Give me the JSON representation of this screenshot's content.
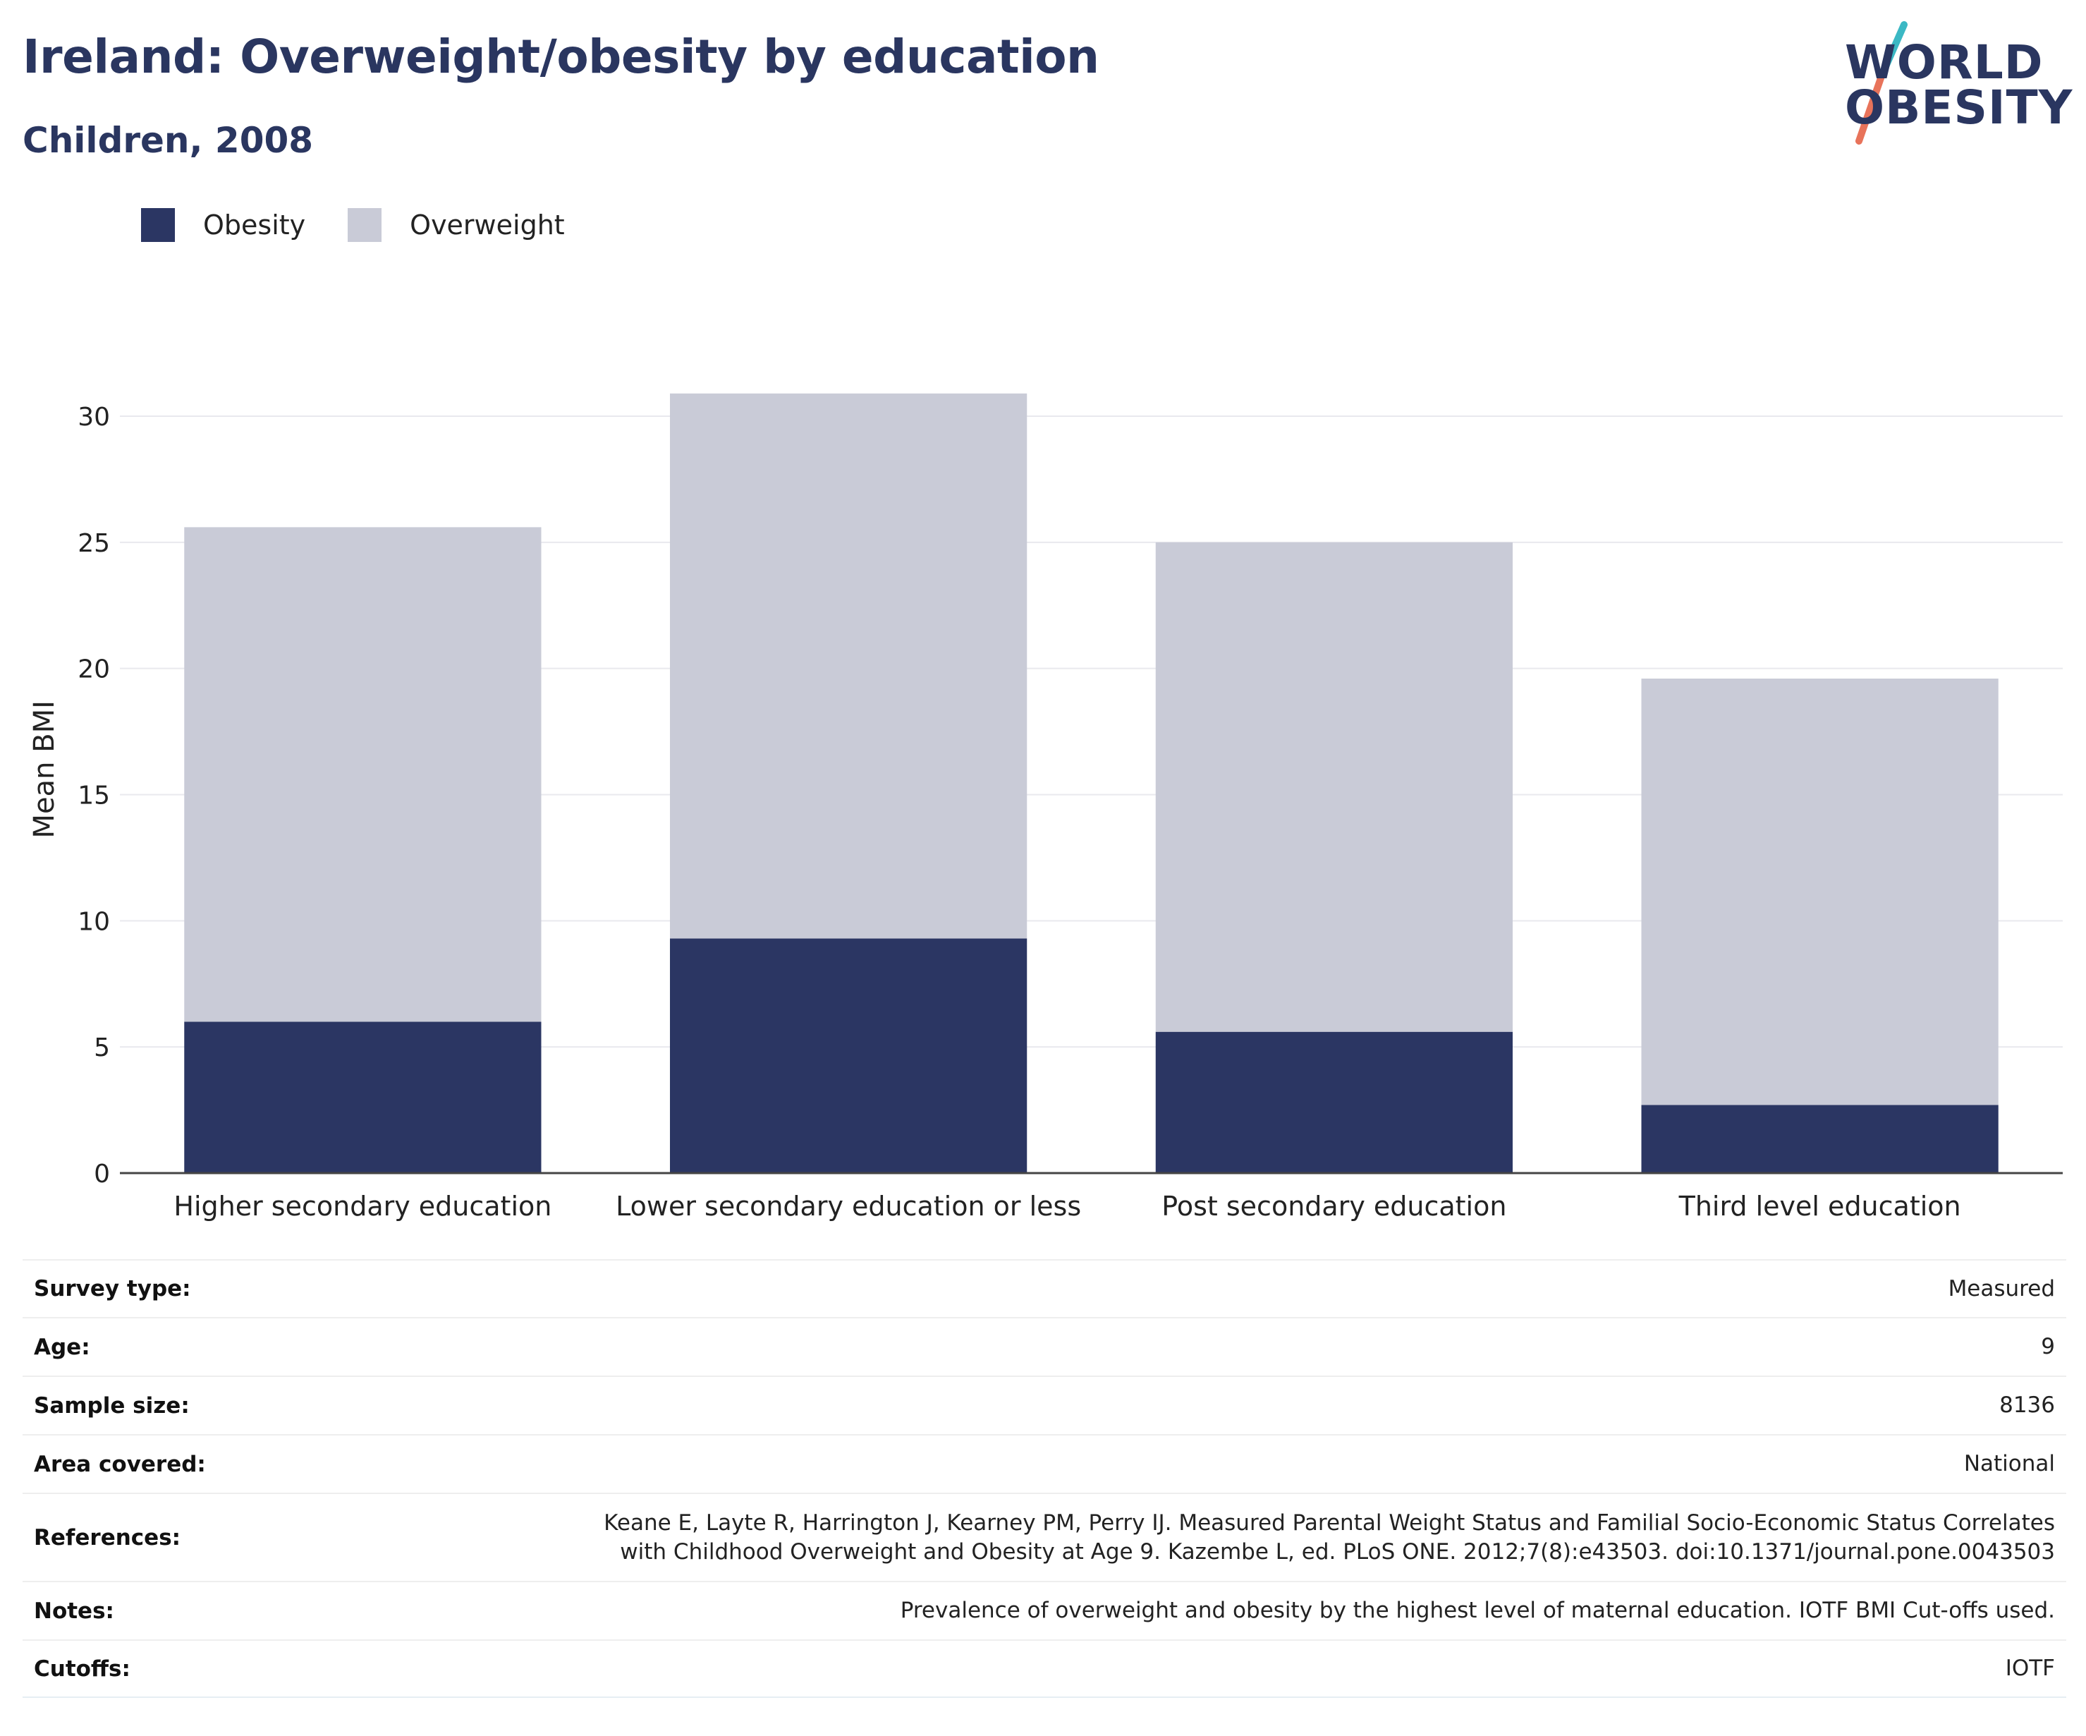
{
  "header": {
    "title": "Ireland: Overweight/obesity by education",
    "subtitle": "Children, 2008"
  },
  "logo": {
    "text_line1": "WORLD",
    "text_line2": "OBESITY",
    "colors": {
      "text": "#2a3660",
      "slash_top": "#3bb8c4",
      "slash_bottom": "#e8735a"
    }
  },
  "legend": [
    {
      "label": "Obesity",
      "color": "#2b3663"
    },
    {
      "label": "Overweight",
      "color": "#c9cbd7"
    }
  ],
  "chart_data": {
    "type": "bar",
    "stacked": true,
    "categories": [
      "Higher secondary education",
      "Lower secondary education or less",
      "Post secondary education",
      "Third level education"
    ],
    "series": [
      {
        "name": "Obesity",
        "color": "#2b3663",
        "values": [
          6.0,
          9.3,
          5.6,
          2.7
        ]
      },
      {
        "name": "Overweight",
        "color": "#c9cbd7",
        "values": [
          19.6,
          21.6,
          19.4,
          16.9
        ]
      }
    ],
    "ylabel": "Mean BMI",
    "ylim": [
      0,
      32
    ],
    "yticks": [
      0,
      5,
      10,
      15,
      20,
      25,
      30
    ],
    "grid": true,
    "legend_position": "top-left"
  },
  "info": [
    {
      "label": "Survey type:",
      "value": "Measured"
    },
    {
      "label": "Age:",
      "value": "9"
    },
    {
      "label": "Sample size:",
      "value": "8136"
    },
    {
      "label": "Area covered:",
      "value": "National"
    },
    {
      "label": "References:",
      "value": "Keane E, Layte R, Harrington J, Kearney PM, Perry IJ. Measured Parental Weight Status and Familial Socio-Economic Status Correlates\nwith Childhood Overweight and Obesity at Age 9. Kazembe L, ed. PLoS ONE. 2012;7(8):e43503. doi:10.1371/journal.pone.0043503"
    },
    {
      "label": "Notes:",
      "value": "Prevalence of overweight and obesity by the highest level of maternal education. IOTF BMI Cut-offs used."
    },
    {
      "label": "Cutoffs:",
      "value": "IOTF"
    }
  ]
}
